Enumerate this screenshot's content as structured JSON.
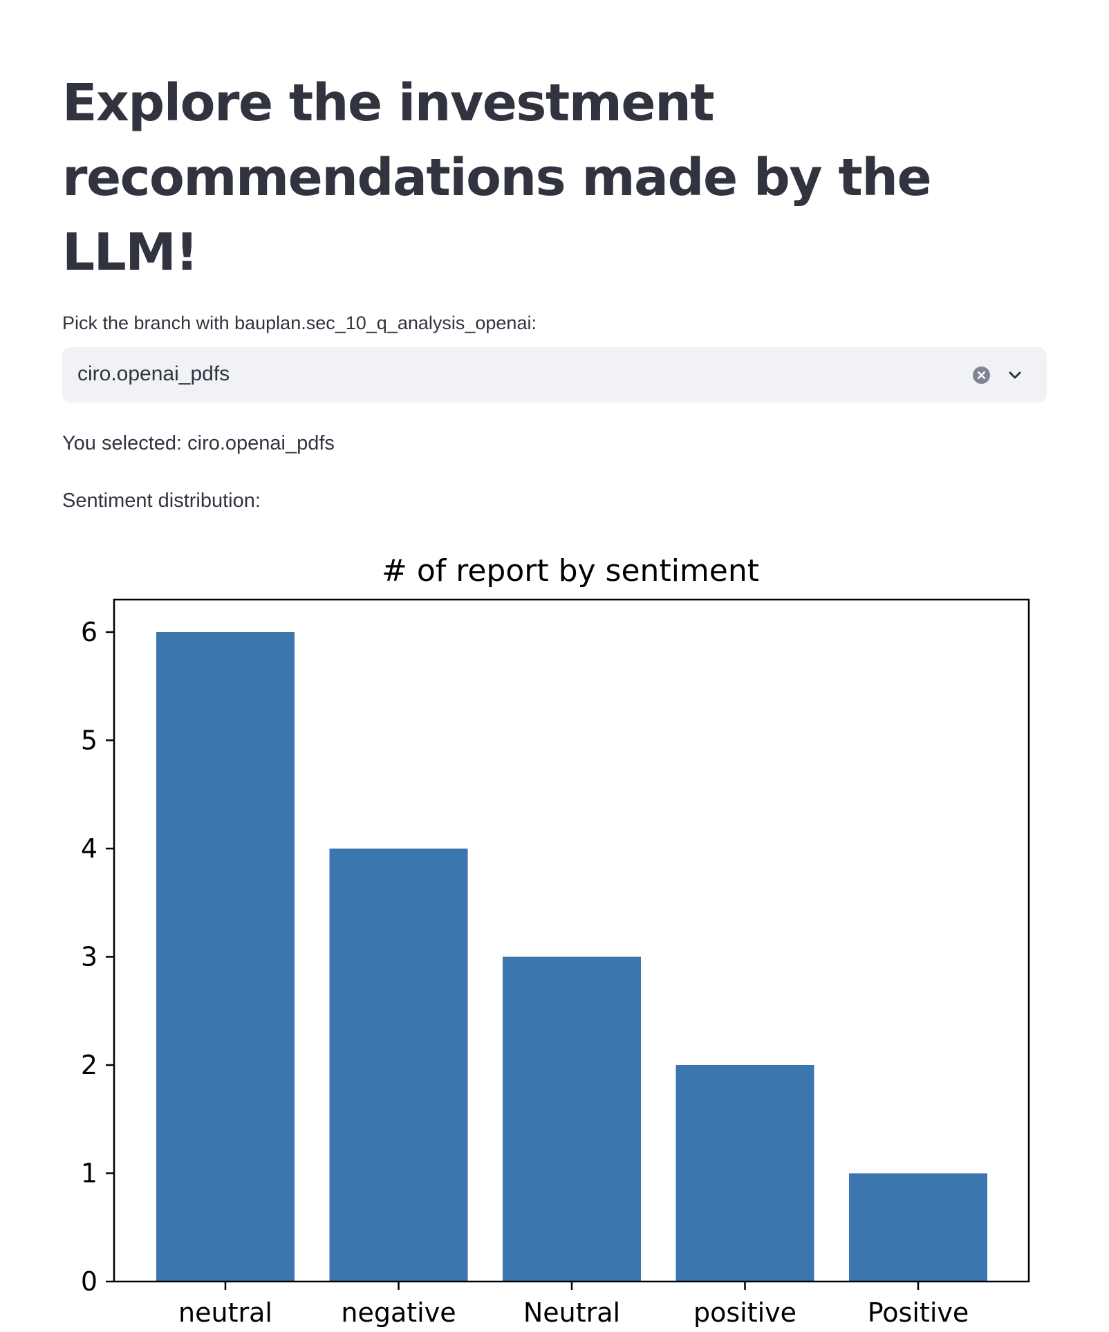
{
  "page": {
    "title": "Explore the investment recommendations made by the LLM!"
  },
  "branch_select": {
    "label": "Pick the branch with bauplan.sec_10_q_analysis_openai:",
    "value": "ciro.openai_pdfs",
    "clear_icon": "clear-circle-x-icon",
    "dropdown_icon": "chevron-down-icon"
  },
  "selection": {
    "text": "You selected: ciro.openai_pdfs"
  },
  "sentiment": {
    "label": "Sentiment distribution:"
  },
  "colors": {
    "bar": "#3c76ae",
    "select_bg": "#f0f2f6",
    "text": "#31333f"
  },
  "chart_data": {
    "type": "bar",
    "title": "# of report by sentiment",
    "xlabel": "",
    "ylabel": "",
    "categories": [
      "neutral",
      "negative",
      "Neutral",
      "positive",
      "Positive"
    ],
    "values": [
      6,
      4,
      3,
      2,
      1
    ],
    "ylim": [
      0,
      6.3
    ],
    "yticks": [
      0,
      1,
      2,
      3,
      4,
      5,
      6
    ],
    "grid": false,
    "legend": "none"
  }
}
